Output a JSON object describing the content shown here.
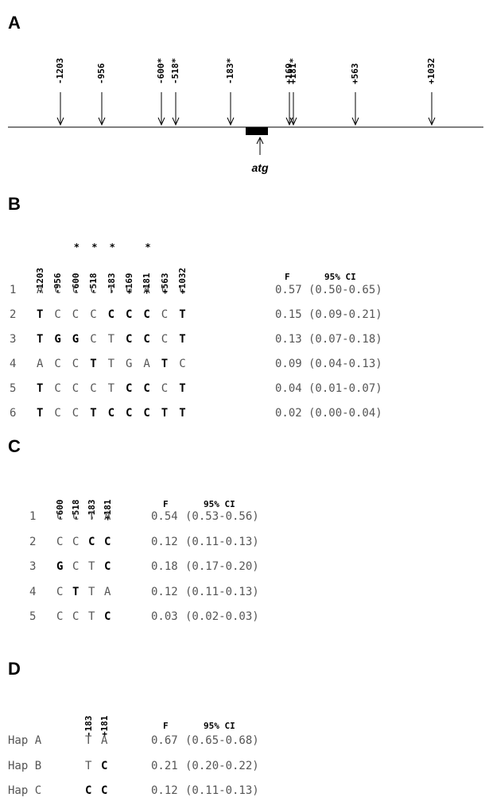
{
  "panel_a": {
    "letter": "A",
    "sites": [
      "-1203",
      "-956",
      "-600*",
      "-518*",
      "-183*",
      "+169",
      "+181*",
      "+563",
      "+1032"
    ],
    "start_label": "atg"
  },
  "panel_b": {
    "letter": "B",
    "positions": [
      "-1203",
      "-956",
      "-600",
      "-518",
      "-183",
      "+169",
      "+181",
      "+563",
      "+1032"
    ],
    "stars": [
      "",
      "",
      "*",
      "*",
      "*",
      "",
      "*",
      "",
      ""
    ],
    "col_f": "F",
    "col_ci": "95% CI",
    "rows": [
      {
        "id": "1",
        "alleles": [
          "A",
          "C",
          "C",
          "C",
          "T",
          "G",
          "A",
          "C",
          "C"
        ],
        "f": "0.57",
        "ci": "(0.50-0.65)"
      },
      {
        "id": "2",
        "alleles": [
          "T",
          "C",
          "C",
          "C",
          "C",
          "C",
          "C",
          "C",
          "T"
        ],
        "f": "0.15",
        "ci": "(0.09-0.21)"
      },
      {
        "id": "3",
        "alleles": [
          "T",
          "G",
          "G",
          "C",
          "T",
          "C",
          "C",
          "C",
          "T"
        ],
        "f": "0.13",
        "ci": "(0.07-0.18)"
      },
      {
        "id": "4",
        "alleles": [
          "A",
          "C",
          "C",
          "T",
          "T",
          "G",
          "A",
          "T",
          "C"
        ],
        "f": "0.09",
        "ci": "(0.04-0.13)"
      },
      {
        "id": "5",
        "alleles": [
          "T",
          "C",
          "C",
          "C",
          "T",
          "C",
          "C",
          "C",
          "T"
        ],
        "f": "0.04",
        "ci": "(0.01-0.07)"
      },
      {
        "id": "6",
        "alleles": [
          "T",
          "C",
          "C",
          "T",
          "C",
          "C",
          "C",
          "T",
          "T"
        ],
        "f": "0.02",
        "ci": "(0.00-0.04)"
      }
    ]
  },
  "panel_c": {
    "letter": "C",
    "positions": [
      "-600",
      "-518",
      "-183",
      "+181"
    ],
    "col_f": "F",
    "col_ci": "95% CI",
    "rows": [
      {
        "id": "1",
        "alleles": [
          "C",
          "C",
          "T",
          "A"
        ],
        "f": "0.54",
        "ci": "(0.53-0.56)"
      },
      {
        "id": "2",
        "alleles": [
          "C",
          "C",
          "C",
          "C"
        ],
        "f": "0.12",
        "ci": "(0.11-0.13)"
      },
      {
        "id": "3",
        "alleles": [
          "G",
          "C",
          "T",
          "C"
        ],
        "f": "0.18",
        "ci": "(0.17-0.20)"
      },
      {
        "id": "4",
        "alleles": [
          "C",
          "T",
          "T",
          "A"
        ],
        "f": "0.12",
        "ci": "(0.11-0.13)"
      },
      {
        "id": "5",
        "alleles": [
          "C",
          "C",
          "T",
          "C"
        ],
        "f": "0.03",
        "ci": "(0.02-0.03)"
      }
    ]
  },
  "panel_d": {
    "letter": "D",
    "positions": [
      "-183",
      "+181"
    ],
    "col_f": "F",
    "col_ci": "95% CI",
    "rows": [
      {
        "id": "Hap A",
        "alleles": [
          "T",
          "A"
        ],
        "f": "0.67",
        "ci": "(0.65-0.68)"
      },
      {
        "id": "Hap B",
        "alleles": [
          "T",
          "C"
        ],
        "f": "0.21",
        "ci": "(0.20-0.22)"
      },
      {
        "id": "Hap C",
        "alleles": [
          "C",
          "C"
        ],
        "f": "0.12",
        "ci": "(0.11-0.13)"
      }
    ]
  }
}
